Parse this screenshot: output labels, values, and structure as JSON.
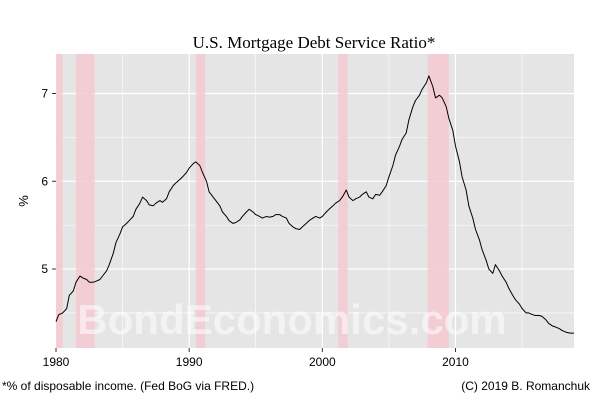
{
  "chart_data": {
    "type": "line",
    "title": "U.S. Mortgage Debt Service Ratio*",
    "xlabel": "",
    "ylabel": "%",
    "xlim": [
      1980.0,
      2018.9
    ],
    "ylim": [
      4.1,
      7.45
    ],
    "x_ticks": [
      1980,
      1990,
      2000,
      2010
    ],
    "y_ticks": [
      5,
      6,
      7
    ],
    "grid": true,
    "legend": "none",
    "recessions": [
      [
        1980.0,
        1980.5
      ],
      [
        1981.5,
        1982.9
      ],
      [
        1990.5,
        1991.2
      ],
      [
        2001.2,
        2001.9
      ],
      [
        2007.9,
        2009.5
      ]
    ],
    "series": [
      {
        "x": [
          1980.0,
          1980.2,
          1980.5,
          1980.8,
          1981.0,
          1981.3,
          1981.5,
          1981.8,
          1982.0,
          1982.3,
          1982.5,
          1982.8,
          1983.0,
          1983.3,
          1983.5,
          1983.8,
          1984.0,
          1984.3,
          1984.5,
          1984.8,
          1985.0,
          1985.3,
          1985.5,
          1985.8,
          1986.0,
          1986.3,
          1986.5,
          1986.8,
          1987.0,
          1987.3,
          1987.5,
          1987.8,
          1988.0,
          1988.3,
          1988.5,
          1988.8,
          1989.0,
          1989.3,
          1989.5,
          1989.8,
          1990.0,
          1990.3,
          1990.5,
          1990.8,
          1991.0,
          1991.3,
          1991.5,
          1991.8,
          1992.0,
          1992.3,
          1992.5,
          1992.8,
          1993.0,
          1993.3,
          1993.5,
          1993.8,
          1994.0,
          1994.3,
          1994.5,
          1994.8,
          1995.0,
          1995.3,
          1995.5,
          1995.8,
          1996.0,
          1996.3,
          1996.5,
          1996.8,
          1997.0,
          1997.3,
          1997.5,
          1997.8,
          1998.0,
          1998.3,
          1998.5,
          1998.8,
          1999.0,
          1999.3,
          1999.5,
          1999.8,
          2000.0,
          2000.3,
          2000.5,
          2000.8,
          2001.0,
          2001.3,
          2001.5,
          2001.8,
          2002.0,
          2002.3,
          2002.5,
          2002.8,
          2003.0,
          2003.3,
          2003.5,
          2003.8,
          2004.0,
          2004.3,
          2004.5,
          2004.8,
          2005.0,
          2005.3,
          2005.5,
          2005.8,
          2006.0,
          2006.3,
          2006.5,
          2006.8,
          2007.0,
          2007.3,
          2007.5,
          2007.8,
          2008.0,
          2008.3,
          2008.5,
          2008.8,
          2009.0,
          2009.3,
          2009.5,
          2009.8,
          2010.0,
          2010.3,
          2010.5,
          2010.8,
          2011.0,
          2011.3,
          2011.5,
          2011.8,
          2012.0,
          2012.3,
          2012.5,
          2012.8,
          2013.0,
          2013.3,
          2013.5,
          2013.8,
          2014.0,
          2014.3,
          2014.5,
          2014.8,
          2015.0,
          2015.3,
          2015.5,
          2015.8,
          2016.0,
          2016.3,
          2016.5,
          2016.8,
          2017.0,
          2017.3,
          2017.5,
          2017.8,
          2018.0,
          2018.3,
          2018.6,
          2018.9
        ],
        "values": [
          4.4,
          4.48,
          4.5,
          4.55,
          4.7,
          4.75,
          4.85,
          4.92,
          4.9,
          4.88,
          4.85,
          4.85,
          4.86,
          4.88,
          4.92,
          4.98,
          5.05,
          5.18,
          5.3,
          5.4,
          5.48,
          5.52,
          5.55,
          5.6,
          5.68,
          5.75,
          5.82,
          5.78,
          5.73,
          5.72,
          5.75,
          5.78,
          5.76,
          5.8,
          5.88,
          5.95,
          5.98,
          6.02,
          6.05,
          6.1,
          6.15,
          6.2,
          6.22,
          6.18,
          6.1,
          6.0,
          5.88,
          5.82,
          5.78,
          5.72,
          5.65,
          5.6,
          5.55,
          5.52,
          5.53,
          5.56,
          5.6,
          5.65,
          5.68,
          5.65,
          5.62,
          5.6,
          5.58,
          5.6,
          5.59,
          5.6,
          5.62,
          5.62,
          5.6,
          5.58,
          5.52,
          5.48,
          5.46,
          5.45,
          5.48,
          5.52,
          5.55,
          5.58,
          5.6,
          5.58,
          5.6,
          5.65,
          5.68,
          5.72,
          5.75,
          5.78,
          5.82,
          5.9,
          5.82,
          5.78,
          5.8,
          5.82,
          5.85,
          5.88,
          5.82,
          5.8,
          5.85,
          5.84,
          5.88,
          5.95,
          6.05,
          6.18,
          6.3,
          6.4,
          6.48,
          6.55,
          6.7,
          6.85,
          6.92,
          6.98,
          7.05,
          7.12,
          7.2,
          7.08,
          6.95,
          6.98,
          6.95,
          6.85,
          6.72,
          6.58,
          6.4,
          6.22,
          6.05,
          5.9,
          5.72,
          5.58,
          5.45,
          5.33,
          5.22,
          5.1,
          5.0,
          4.95,
          5.05,
          4.98,
          4.92,
          4.85,
          4.78,
          4.7,
          4.65,
          4.6,
          4.55,
          4.5,
          4.5,
          4.48,
          4.47,
          4.47,
          4.46,
          4.42,
          4.38,
          4.35,
          4.34,
          4.32,
          4.3,
          4.28,
          4.27,
          4.27
        ]
      }
    ]
  },
  "watermark": "BondEconomics.com",
  "footnote_left": "*% of disposable income. (Fed BoG via FRED.)",
  "footnote_right": "(C) 2019 B. Romanchuk",
  "colors": {
    "panel": "#e5e5e5",
    "grid": "#ffffff",
    "recession": "#f4c9d1",
    "line": "#000000"
  }
}
